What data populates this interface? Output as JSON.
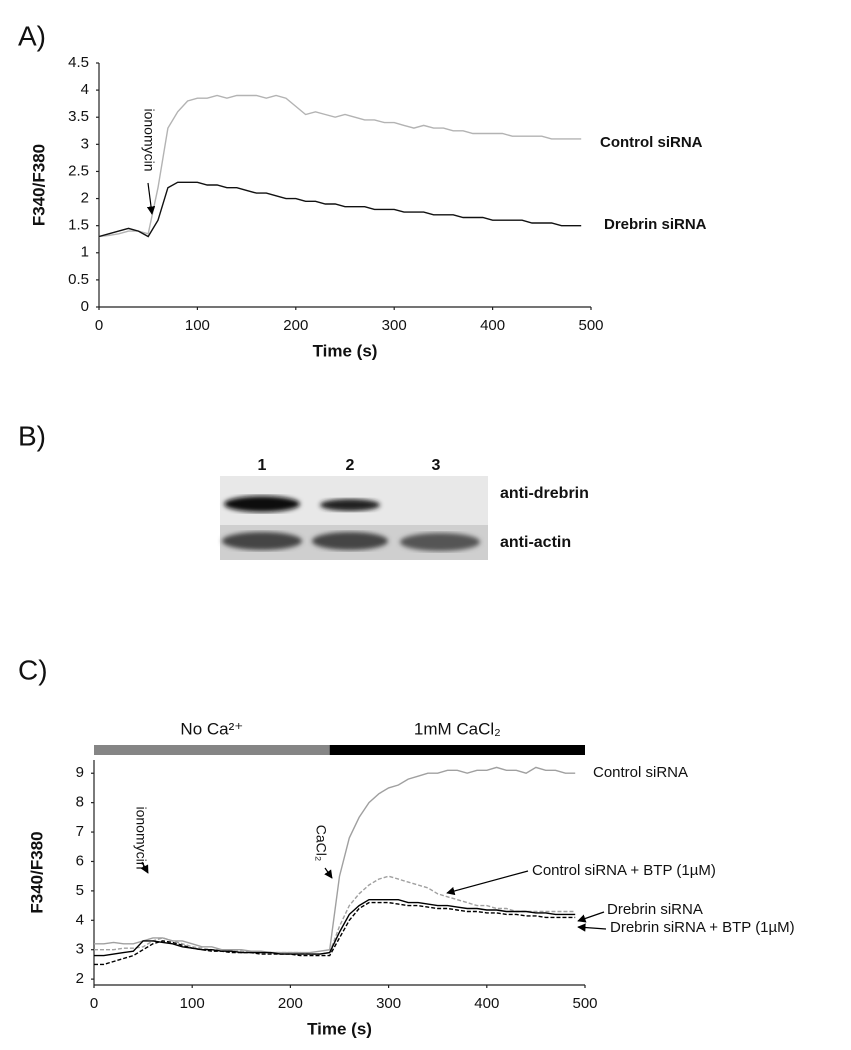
{
  "chart_data": [
    {
      "type": "line",
      "panel_label": "A)",
      "x_label": "Time (s)",
      "y_label": "F340/F380",
      "xlim": [
        0,
        500
      ],
      "xticks": [
        0,
        100,
        200,
        300,
        400,
        500
      ],
      "ylim": [
        0,
        4.5
      ],
      "yticks": [
        0,
        0.5,
        1,
        1.5,
        2,
        2.5,
        3,
        3.5,
        4,
        4.5
      ],
      "annotations": [
        "ionomycin"
      ],
      "x": [
        0,
        10,
        20,
        30,
        40,
        50,
        60,
        70,
        80,
        90,
        100,
        110,
        120,
        130,
        140,
        150,
        160,
        170,
        180,
        190,
        200,
        210,
        220,
        230,
        240,
        250,
        260,
        270,
        280,
        290,
        300,
        310,
        320,
        330,
        340,
        350,
        360,
        370,
        380,
        390,
        400,
        410,
        420,
        430,
        440,
        450,
        460,
        470,
        480,
        490
      ],
      "series": [
        {
          "name": "Control siRNA",
          "color": "#b3b3b3",
          "style": "solid",
          "values": [
            1.3,
            1.32,
            1.35,
            1.4,
            1.4,
            1.35,
            2.2,
            3.3,
            3.6,
            3.8,
            3.85,
            3.85,
            3.9,
            3.85,
            3.9,
            3.9,
            3.9,
            3.85,
            3.9,
            3.85,
            3.7,
            3.55,
            3.6,
            3.55,
            3.5,
            3.55,
            3.5,
            3.45,
            3.45,
            3.4,
            3.4,
            3.35,
            3.3,
            3.35,
            3.3,
            3.3,
            3.25,
            3.25,
            3.2,
            3.2,
            3.2,
            3.2,
            3.15,
            3.15,
            3.15,
            3.15,
            3.1,
            3.1,
            3.1,
            3.1
          ]
        },
        {
          "name": "Drebrin siRNA",
          "color": "#111111",
          "style": "solid",
          "values": [
            1.3,
            1.35,
            1.4,
            1.45,
            1.4,
            1.3,
            1.6,
            2.2,
            2.3,
            2.3,
            2.3,
            2.25,
            2.25,
            2.2,
            2.2,
            2.15,
            2.1,
            2.1,
            2.05,
            2.0,
            2.0,
            1.95,
            1.95,
            1.9,
            1.9,
            1.85,
            1.85,
            1.85,
            1.8,
            1.8,
            1.8,
            1.75,
            1.75,
            1.75,
            1.7,
            1.7,
            1.7,
            1.65,
            1.65,
            1.65,
            1.6,
            1.6,
            1.6,
            1.6,
            1.55,
            1.55,
            1.55,
            1.5,
            1.5,
            1.5
          ]
        }
      ]
    },
    {
      "type": "line",
      "panel_label": "C)",
      "x_label": "Time (s)",
      "y_label": "F340/F380",
      "xlim": [
        0,
        500
      ],
      "xticks": [
        0,
        100,
        200,
        300,
        400,
        500
      ],
      "ylim": [
        1.8,
        9.45
      ],
      "yticks": [
        2,
        3,
        4,
        5,
        6,
        7,
        8,
        9
      ],
      "annotations": [
        "ionomycin",
        "CaCl₂"
      ],
      "bars": [
        {
          "label": "No Ca²⁺",
          "start": 0,
          "end": 240,
          "color": "#858585"
        },
        {
          "label": "1mM CaCl₂",
          "start": 240,
          "end": 500,
          "color": "#000000"
        }
      ],
      "x": [
        0,
        10,
        20,
        30,
        40,
        50,
        60,
        70,
        80,
        90,
        100,
        110,
        120,
        130,
        140,
        150,
        160,
        170,
        180,
        190,
        200,
        210,
        220,
        230,
        240,
        250,
        260,
        270,
        280,
        290,
        300,
        310,
        320,
        330,
        340,
        350,
        360,
        370,
        380,
        390,
        400,
        410,
        420,
        430,
        440,
        450,
        460,
        470,
        480,
        490
      ],
      "series": [
        {
          "name": "Control siRNA",
          "color": "#a0a0a0",
          "style": "solid",
          "values": [
            3.2,
            3.2,
            3.25,
            3.2,
            3.2,
            3.3,
            3.4,
            3.4,
            3.3,
            3.3,
            3.2,
            3.1,
            3.1,
            3.0,
            3.0,
            3.0,
            2.95,
            2.95,
            2.9,
            2.9,
            2.9,
            2.9,
            2.9,
            2.95,
            3.0,
            5.5,
            6.8,
            7.5,
            8.0,
            8.3,
            8.5,
            8.6,
            8.8,
            8.9,
            9.0,
            9.0,
            9.1,
            9.1,
            9.0,
            9.1,
            9.1,
            9.2,
            9.1,
            9.1,
            9.0,
            9.2,
            9.1,
            9.1,
            9.0,
            9.0
          ]
        },
        {
          "name": "Control siRNA + BTP (1µM)",
          "color": "#a0a0a0",
          "style": "dashed",
          "values": [
            3.0,
            3.0,
            3.0,
            3.05,
            3.05,
            3.1,
            3.3,
            3.4,
            3.3,
            3.2,
            3.1,
            3.05,
            3.0,
            3.0,
            2.95,
            2.95,
            2.9,
            2.9,
            2.9,
            2.9,
            2.9,
            2.9,
            2.85,
            2.85,
            2.9,
            3.8,
            4.5,
            4.9,
            5.2,
            5.4,
            5.5,
            5.4,
            5.3,
            5.2,
            5.1,
            4.9,
            4.8,
            4.7,
            4.6,
            4.5,
            4.5,
            4.4,
            4.4,
            4.3,
            4.3,
            4.3,
            4.3,
            4.3,
            4.3,
            4.3
          ]
        },
        {
          "name": "Drebrin siRNA",
          "color": "#000000",
          "style": "solid",
          "values": [
            2.8,
            2.8,
            2.85,
            2.9,
            2.95,
            3.3,
            3.3,
            3.25,
            3.2,
            3.1,
            3.05,
            3.0,
            3.0,
            2.95,
            2.95,
            2.9,
            2.9,
            2.9,
            2.9,
            2.85,
            2.85,
            2.85,
            2.85,
            2.85,
            2.9,
            3.6,
            4.2,
            4.5,
            4.7,
            4.7,
            4.7,
            4.7,
            4.6,
            4.6,
            4.55,
            4.5,
            4.5,
            4.45,
            4.4,
            4.4,
            4.35,
            4.35,
            4.3,
            4.3,
            4.3,
            4.25,
            4.25,
            4.2,
            4.2,
            4.2
          ]
        },
        {
          "name": "Drebrin siRNA + BTP (1µM)",
          "color": "#000000",
          "style": "dashed",
          "values": [
            2.5,
            2.5,
            2.6,
            2.7,
            2.8,
            3.0,
            3.2,
            3.3,
            3.25,
            3.15,
            3.05,
            3.0,
            2.95,
            2.95,
            2.9,
            2.9,
            2.9,
            2.85,
            2.85,
            2.85,
            2.85,
            2.8,
            2.8,
            2.8,
            2.8,
            3.4,
            4.0,
            4.4,
            4.6,
            4.6,
            4.6,
            4.55,
            4.5,
            4.5,
            4.45,
            4.4,
            4.4,
            4.35,
            4.3,
            4.3,
            4.25,
            4.25,
            4.2,
            4.2,
            4.15,
            4.15,
            4.1,
            4.1,
            4.1,
            4.1
          ]
        }
      ]
    }
  ],
  "blot": {
    "panel_label": "B)",
    "lanes": [
      "1",
      "2",
      "3"
    ],
    "rows": [
      "anti-drebrin",
      "anti-actin"
    ]
  }
}
